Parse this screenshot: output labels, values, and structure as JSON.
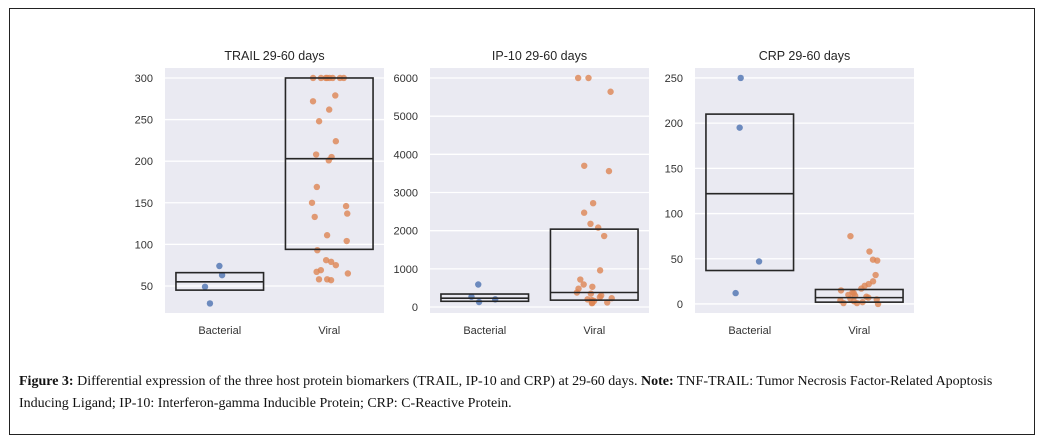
{
  "chart_data": [
    {
      "type": "box+strip",
      "title": "TRAIL 29-60 days",
      "categories": [
        "Bacterial",
        "Viral"
      ],
      "ylim": [
        17.5,
        312
      ],
      "yticks": [
        50,
        100,
        150,
        200,
        250,
        300
      ],
      "grid": true,
      "boxes": [
        {
          "category": "Bacterial",
          "q1": 45,
          "median": 55,
          "q3": 66
        },
        {
          "category": "Viral",
          "q1": 94,
          "median": 203,
          "q3": 300
        }
      ],
      "points": [
        {
          "category": "Bacterial",
          "values": [
            74,
            63,
            49,
            29
          ]
        },
        {
          "category": "Viral",
          "values": [
            300,
            300,
            300,
            300,
            300,
            300,
            300,
            300,
            279,
            272,
            262,
            248,
            224,
            208,
            205,
            201,
            169,
            150,
            146,
            137,
            133,
            111,
            104,
            93,
            81,
            79,
            75,
            69,
            67,
            65,
            58,
            58,
            57
          ]
        }
      ]
    },
    {
      "type": "box+strip",
      "title": "IP-10 29-60 days",
      "categories": [
        "Bacterial",
        "Viral"
      ],
      "ylim": [
        -157,
        6262
      ],
      "yticks": [
        0,
        1000,
        2000,
        3000,
        4000,
        5000,
        6000
      ],
      "grid": true,
      "boxes": [
        {
          "category": "Bacterial",
          "q1": 150,
          "median": 230,
          "q3": 340
        },
        {
          "category": "Viral",
          "q1": 180,
          "median": 380,
          "q3": 2040
        }
      ],
      "points": [
        {
          "category": "Bacterial",
          "values": [
            590,
            270,
            200,
            130
          ]
        },
        {
          "category": "Viral",
          "values": [
            6000,
            6000,
            5640,
            3700,
            3560,
            2720,
            2470,
            2080,
            2180,
            1860,
            960,
            720,
            590,
            530,
            480,
            380,
            350,
            300,
            260,
            230,
            200,
            180,
            160,
            140,
            120,
            110,
            100
          ]
        }
      ]
    },
    {
      "type": "box+strip",
      "title": "CRP 29-60 days",
      "categories": [
        "Bacterial",
        "Viral"
      ],
      "ylim": [
        -10,
        261
      ],
      "yticks": [
        0,
        50,
        100,
        150,
        200,
        250
      ],
      "grid": true,
      "boxes": [
        {
          "category": "Bacterial",
          "q1": 37,
          "median": 122,
          "q3": 210
        },
        {
          "category": "Viral",
          "q1": 2,
          "median": 7,
          "q3": 16
        }
      ],
      "points": [
        {
          "category": "Bacterial",
          "values": [
            250,
            195,
            47,
            12
          ]
        },
        {
          "category": "Viral",
          "values": [
            75,
            58,
            49,
            48,
            32,
            25,
            22,
            20,
            17,
            15,
            13,
            12,
            10,
            9,
            8,
            7,
            6,
            5,
            4,
            3,
            2,
            1,
            1,
            0
          ]
        }
      ]
    }
  ],
  "colors": {
    "bacterial": "#4c72b0",
    "viral": "#dd8452",
    "axes_bg": "#eaeaf2",
    "grid": "#ffffff",
    "box": "#262626"
  },
  "caption": {
    "label": "Figure 3:",
    "text": " Differential expression of the three host protein biomarkers (TRAIL, IP-10 and CRP) at 29-60 days. ",
    "note_label": "Note:",
    "note_text": " TNF-TRAIL: Tumor Necrosis Factor-Related Apoptosis Inducing Ligand; IP-10: Interferon-gamma Inducible Protein; CRP: C-Reactive Protein."
  }
}
